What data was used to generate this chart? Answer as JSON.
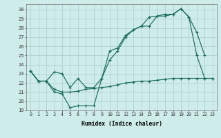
{
  "xlabel": "Humidex (Indice chaleur)",
  "bg_color": "#ceecea",
  "grid_color": "#aaccca",
  "line_color": "#1a6b5a",
  "xlim": [
    -0.5,
    23.5
  ],
  "ylim": [
    19,
    30.6
  ],
  "xticks": [
    0,
    1,
    2,
    3,
    4,
    5,
    6,
    7,
    8,
    9,
    10,
    11,
    12,
    13,
    14,
    15,
    16,
    17,
    18,
    19,
    20,
    21,
    22,
    23
  ],
  "yticks": [
    19,
    20,
    21,
    22,
    23,
    24,
    25,
    26,
    27,
    28,
    29,
    30
  ],
  "series_upper_x": [
    0,
    1,
    2,
    3,
    4,
    5,
    6,
    7,
    8,
    9,
    10,
    11,
    12,
    13,
    14,
    15,
    16,
    17,
    18,
    19,
    20,
    21,
    22
  ],
  "series_upper_y": [
    23.3,
    22.2,
    22.2,
    23.2,
    23.0,
    21.5,
    22.5,
    21.5,
    21.5,
    22.5,
    25.5,
    25.8,
    27.2,
    27.8,
    28.2,
    29.2,
    29.3,
    29.3,
    29.5,
    30.1,
    29.2,
    27.5,
    25.0
  ],
  "series_lower_x": [
    0,
    1,
    2,
    3,
    4,
    5,
    6,
    7,
    8,
    9,
    10,
    11,
    12,
    13,
    14,
    15,
    16,
    17,
    18,
    19,
    20,
    21,
    22,
    23
  ],
  "series_lower_y": [
    23.3,
    22.2,
    22.2,
    21.0,
    20.8,
    19.3,
    19.5,
    19.5,
    19.5,
    22.5,
    24.5,
    25.5,
    27.0,
    27.8,
    28.2,
    28.2,
    29.3,
    29.5,
    29.5,
    30.1,
    29.2,
    25.0,
    22.5,
    22.5
  ],
  "series_flat_x": [
    0,
    1,
    2,
    3,
    4,
    5,
    6,
    7,
    8,
    9,
    10,
    11,
    12,
    13,
    14,
    15,
    16,
    17,
    18,
    19,
    20,
    21,
    22,
    23
  ],
  "series_flat_y": [
    23.3,
    22.2,
    22.2,
    21.3,
    21.0,
    21.0,
    21.1,
    21.3,
    21.4,
    21.5,
    21.6,
    21.8,
    22.0,
    22.1,
    22.2,
    22.2,
    22.3,
    22.4,
    22.5,
    22.5,
    22.5,
    22.5,
    22.5,
    22.5
  ]
}
